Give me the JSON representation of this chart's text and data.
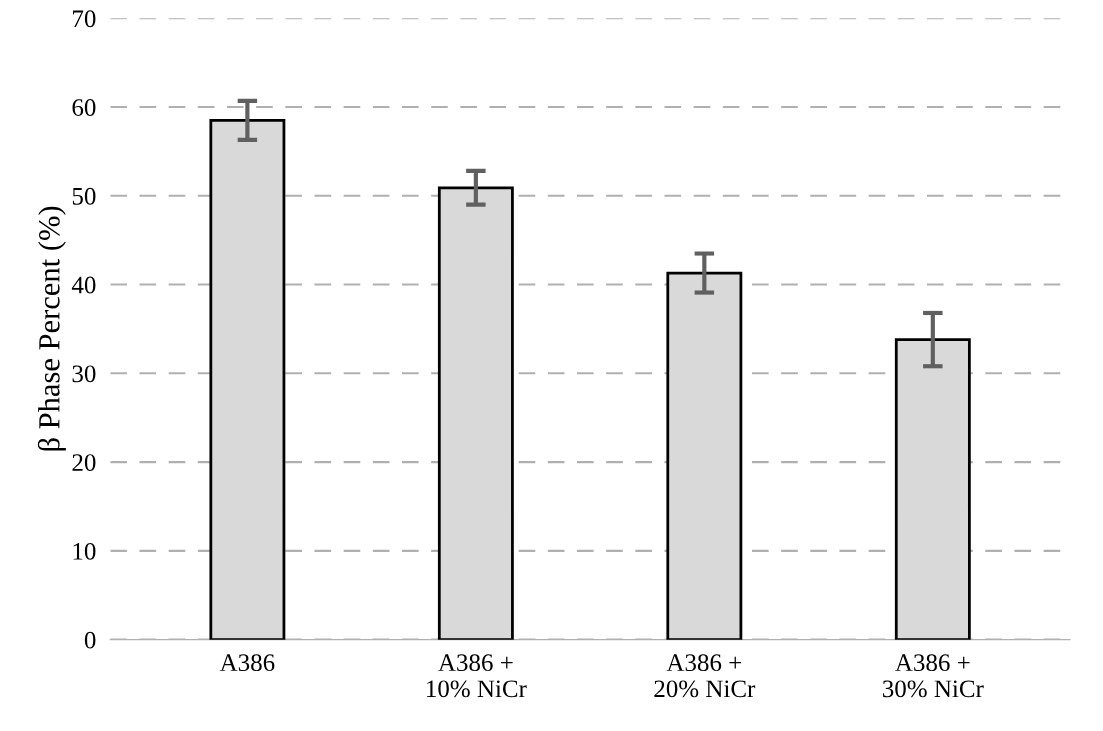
{
  "chart_data": {
    "type": "bar",
    "ylabel": "β Phase Percent (%)",
    "categories": [
      "A386",
      "A386 +\n10% NiCr",
      "A386 +\n20% NiCr",
      "A386 +\n30% NiCr"
    ],
    "values": [
      58.5,
      50.9,
      41.3,
      33.8
    ],
    "errors": [
      2.2,
      1.9,
      2.2,
      3.0
    ],
    "color": "#d9d9d9",
    "ylim": [
      0,
      70
    ],
    "yticks": [
      0,
      10,
      20,
      30,
      40,
      50,
      60,
      70
    ],
    "grid": "y",
    "line_style": "dashed"
  }
}
